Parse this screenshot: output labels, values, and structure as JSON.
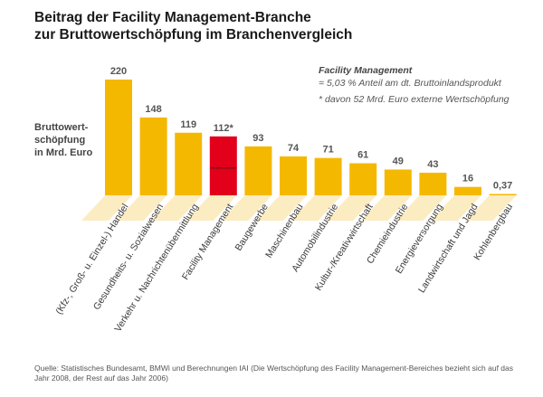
{
  "title": {
    "line1": "Beitrag der Facility Management-Branche",
    "line2": "zur Bruttowertschöpfung im Branchenvergleich"
  },
  "ylabel": {
    "line1": "Bruttowert-",
    "line2": "schöpfung",
    "line3": "in Mrd. Euro"
  },
  "note": {
    "heading": "Facility Management",
    "line1": "= 5,03 % Anteil am dt. Bruttoinlandsprodukt",
    "line2": "* davon 52 Mrd. Euro externe Wertschöpfung"
  },
  "source": "Quelle: Statistisches Bundesamt, BMWi und Berechnungen IAI (Die Wertschöpfung des Facility Management-Bereiches bezieht sich auf das Jahr 2008, der Rest auf das Jahr 2006)",
  "colors": {
    "bar": "#F5B800",
    "highlight": "#E2001A",
    "shadow": "#FBE7B3",
    "value_label": "#555555",
    "category_label": "#3a3a3a"
  },
  "chart_data": {
    "type": "bar",
    "categories": [
      "(Kfz-, Groß- u. Einzel-) Handel",
      "Gesundheits- u. Sozialwesen",
      "Verkehr u. Nachrichtenübermittlung",
      "Facility Management",
      "Baugewerbe",
      "Maschinenbau",
      "Automobilindustrie",
      "Kultur-/Kreativwirtschaft",
      "Chemieindustrie",
      "Energieversorgung",
      "Landwirtschaft und Jagd",
      "Kohlenbergbau"
    ],
    "values": [
      220,
      148,
      119,
      112,
      93,
      74,
      71,
      61,
      49,
      43,
      16,
      0.37
    ],
    "value_labels": [
      "220",
      "148",
      "119",
      "112*",
      "93",
      "74",
      "71",
      "61",
      "49",
      "43",
      "16",
      "0,37"
    ],
    "highlight_index": 3,
    "highlight_dotted_value": 52,
    "ylabel": "Bruttowertschöpfung in Mrd. Euro",
    "ylim": [
      0,
      220
    ],
    "grid": false,
    "legend": "none"
  }
}
